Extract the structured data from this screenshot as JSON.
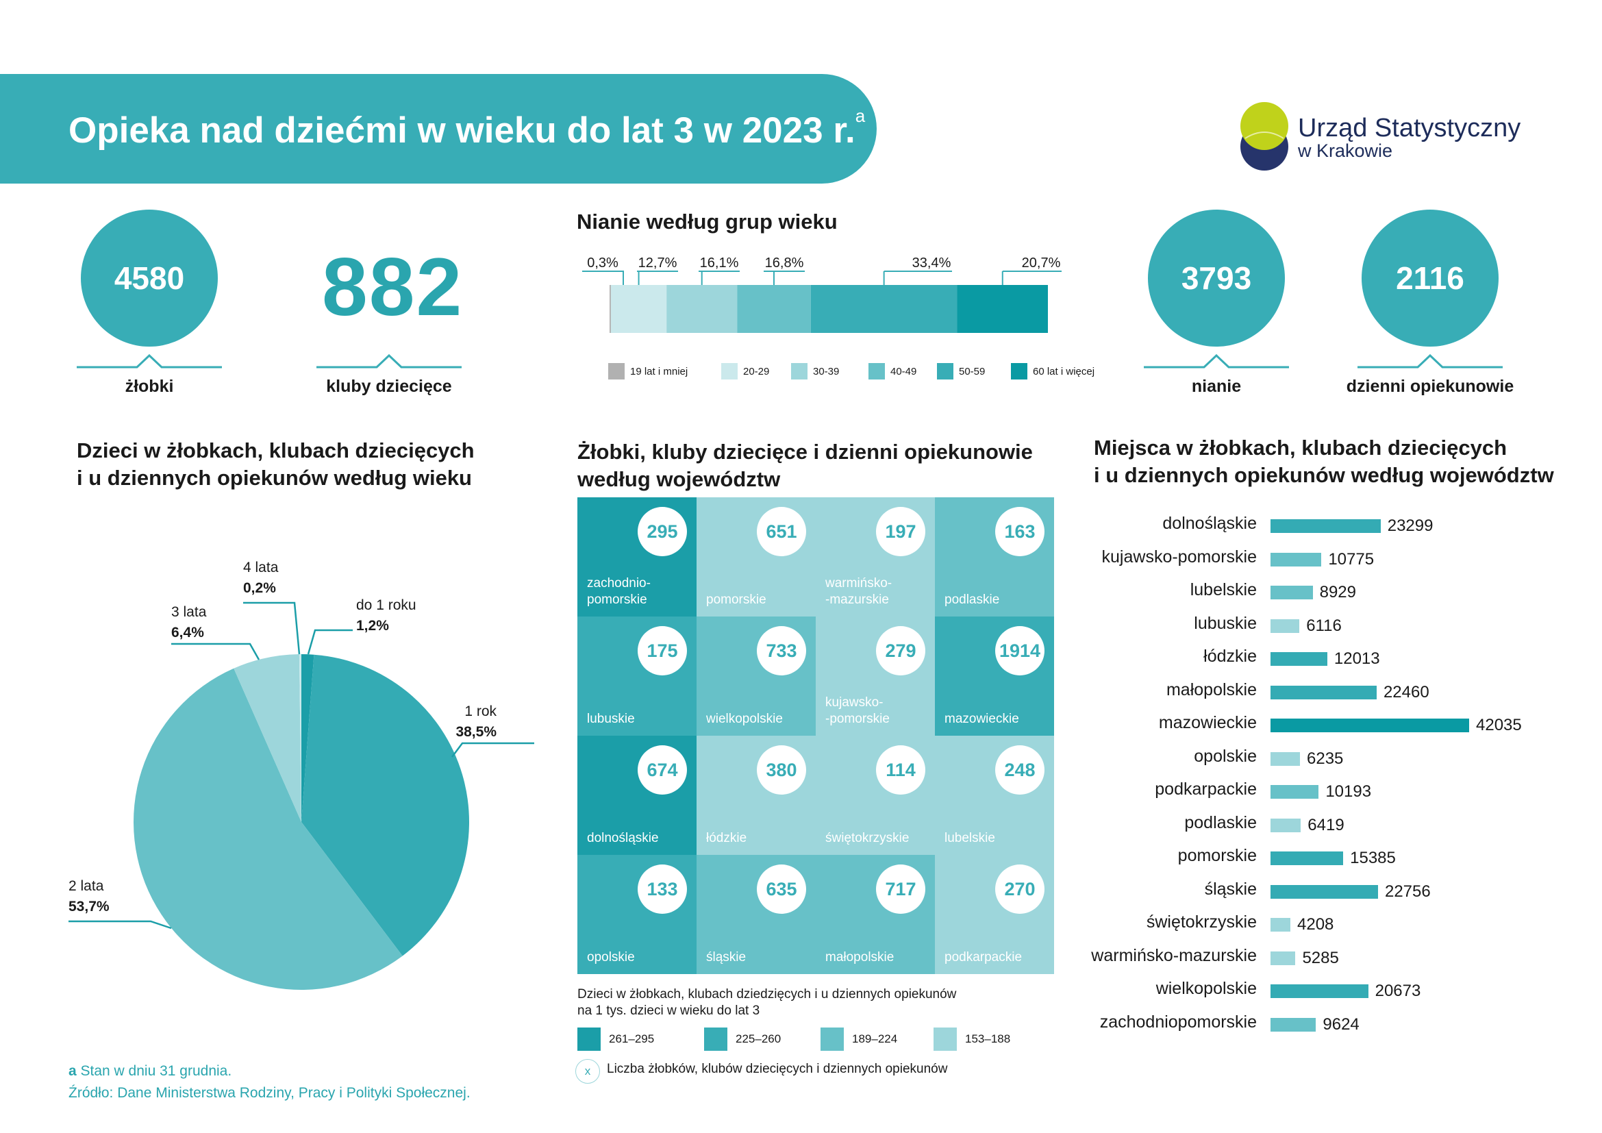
{
  "header": {
    "title": "Opieka nad dziećmi w wieku do lat 3 w 2023 r.",
    "superscript": "a"
  },
  "logo": {
    "line1": "Urząd Statystyczny",
    "line2": "w Krakowie"
  },
  "stats": {
    "zlobki": {
      "value": "4580",
      "label": "żłobki"
    },
    "kluby": {
      "value": "882",
      "label": "kluby dziecięce"
    },
    "nianie": {
      "value": "3793",
      "label": "nianie"
    },
    "opiekunowie": {
      "value": "2116",
      "label": "dzienni opiekunowie"
    }
  },
  "colors": {
    "c1": "#1b9ea8",
    "c2": "#38adb6",
    "c3": "#67c1c8",
    "c4": "#9dd6db",
    "c5": "#c8e9ec",
    "grey": "#b1b1b1",
    "lime": "#c0d21b",
    "navy": "#26346b"
  },
  "chart_data": [
    {
      "type": "bar",
      "stacked": true,
      "title": "Nianie według grup wieku",
      "categories": [
        "19 lat i mniej",
        "20-29",
        "30-39",
        "40-49",
        "50-59",
        "60 lat i więcej"
      ],
      "values": [
        0.3,
        12.7,
        16.1,
        16.8,
        33.4,
        20.7
      ],
      "value_labels": [
        "0,3%",
        "12,7%",
        "16,1%",
        "16,8%",
        "33,4%",
        "20,7%"
      ],
      "colors": [
        "#b1b1b1",
        "#cbe9ec",
        "#9dd6db",
        "#67c1c8",
        "#38adb6",
        "#0a9aa3"
      ]
    },
    {
      "type": "pie",
      "title_lines": [
        "Dzieci w żłobkach, klubach dziecięcych",
        "i u dziennych opiekunów według wieku"
      ],
      "slices": [
        {
          "name": "do 1 roku",
          "value": 1.2,
          "label": "1,2%",
          "color": "#1b9ea8"
        },
        {
          "name": "1 rok",
          "value": 38.5,
          "label": "38,5%",
          "color": "#34abb4"
        },
        {
          "name": "2 lata",
          "value": 53.7,
          "label": "53,7%",
          "color": "#67c1c8"
        },
        {
          "name": "3 lata",
          "value": 6.4,
          "label": "6,4%",
          "color": "#9dd6db"
        },
        {
          "name": "4 lata",
          "value": 0.2,
          "label": "0,2%",
          "color": "#c8e9ec"
        }
      ]
    },
    {
      "type": "heatmap",
      "title_lines": [
        "Żłobki, kluby dziecięce i dzienni opiekunowie",
        "według województw"
      ],
      "cells": [
        {
          "name_lines": [
            "zachodnio-",
            "pomorskie"
          ],
          "count": "295",
          "class": 0
        },
        {
          "name_lines": [
            "pomorskie"
          ],
          "count": "651",
          "class": 3
        },
        {
          "name_lines": [
            "warmińsko-",
            "-mazurskie"
          ],
          "count": "197",
          "class": 3
        },
        {
          "name_lines": [
            "podlaskie"
          ],
          "count": "163",
          "class": 2
        },
        {
          "name_lines": [
            "lubuskie"
          ],
          "count": "175",
          "class": 1
        },
        {
          "name_lines": [
            "wielkopolskie"
          ],
          "count": "733",
          "class": 2
        },
        {
          "name_lines": [
            "kujawsko-",
            "-pomorskie"
          ],
          "count": "279",
          "class": 3
        },
        {
          "name_lines": [
            "mazowieckie"
          ],
          "count": "1914",
          "class": 1
        },
        {
          "name_lines": [
            "dolnośląskie"
          ],
          "count": "674",
          "class": 0
        },
        {
          "name_lines": [
            "łódzkie"
          ],
          "count": "380",
          "class": 3
        },
        {
          "name_lines": [
            "świętokrzyskie"
          ],
          "count": "114",
          "class": 3
        },
        {
          "name_lines": [
            "lubelskie"
          ],
          "count": "248",
          "class": 3
        },
        {
          "name_lines": [
            "opolskie"
          ],
          "count": "133",
          "class": 1
        },
        {
          "name_lines": [
            "śląskie"
          ],
          "count": "635",
          "class": 2
        },
        {
          "name_lines": [
            "małopolskie"
          ],
          "count": "717",
          "class": 2
        },
        {
          "name_lines": [
            "podkarpackie"
          ],
          "count": "270",
          "class": 3
        }
      ],
      "legend_title_lines": [
        "Dzieci w żłobkach, klubach dziedzięcych i u dziennych opiekunów",
        "na 1 tys. dzieci w wieku do lat 3"
      ],
      "legend_classes": [
        {
          "label": "261–295",
          "color": "#1b9ea8"
        },
        {
          "label": "225–260",
          "color": "#38adb6"
        },
        {
          "label": "189–224",
          "color": "#67c1c8"
        },
        {
          "label": "153–188",
          "color": "#9dd6db"
        }
      ],
      "count_marker": "x",
      "count_legend": "Liczba żłobków, klubów dziecięcych i dziennych opiekunów"
    },
    {
      "type": "bar",
      "orientation": "horizontal",
      "title_lines": [
        "Miejsca w żłobkach, klubach dziecięcych",
        "i u dziennych opiekunów według województw"
      ],
      "categories": [
        "dolnośląskie",
        "kujawsko-pomorskie",
        "lubelskie",
        "lubuskie",
        "łódzkie",
        "małopolskie",
        "mazowieckie",
        "opolskie",
        "podkarpackie",
        "podlaskie",
        "pomorskie",
        "śląskie",
        "świętokrzyskie",
        "warmińsko-mazurskie",
        "wielkopolskie",
        "zachodniopomorskie"
      ],
      "values": [
        23299,
        10775,
        8929,
        6116,
        12013,
        22460,
        42035,
        6235,
        10193,
        6419,
        15385,
        22756,
        4208,
        5285,
        20673,
        9624
      ],
      "value_labels": [
        "23299",
        "10775",
        "8929",
        "6116",
        "12013",
        "22460",
        "42035",
        "6235",
        "10193",
        "6419",
        "15385",
        "22756",
        "4208",
        "5285",
        "20673",
        "9624"
      ],
      "colors": [
        "#34abb4",
        "#67c1c8",
        "#67c1c8",
        "#9dd6db",
        "#34abb4",
        "#34abb4",
        "#0a9aa3",
        "#9dd6db",
        "#67c1c8",
        "#9dd6db",
        "#34abb4",
        "#34abb4",
        "#9dd6db",
        "#9dd6db",
        "#34abb4",
        "#67c1c8"
      ]
    }
  ],
  "footnotes": {
    "a_mark": "a",
    "a_text": " Stan w dniu 31 grudnia.",
    "source": "Źródło: Dane Ministerstwa Rodziny, Pracy i Polityki Społecznej."
  }
}
